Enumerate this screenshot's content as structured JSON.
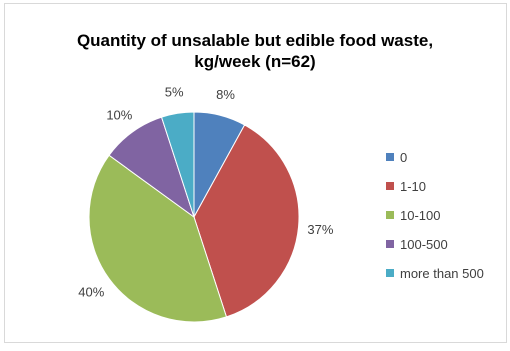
{
  "chart_data": {
    "type": "pie",
    "title_line1": "Quantity of unsalable but edible food waste,",
    "title_line2": "kg/week (n=62)",
    "categories": [
      "0",
      "1-10",
      "10-100",
      "100-500",
      "more than 500"
    ],
    "values": [
      8,
      37,
      40,
      10,
      5
    ],
    "labels": [
      "8%",
      "37%",
      "40%",
      "10%",
      "5%"
    ],
    "colors": [
      "#4f81bd",
      "#c0504d",
      "#9bbb59",
      "#8064a2",
      "#4bacc6"
    ],
    "legend_position": "right"
  }
}
